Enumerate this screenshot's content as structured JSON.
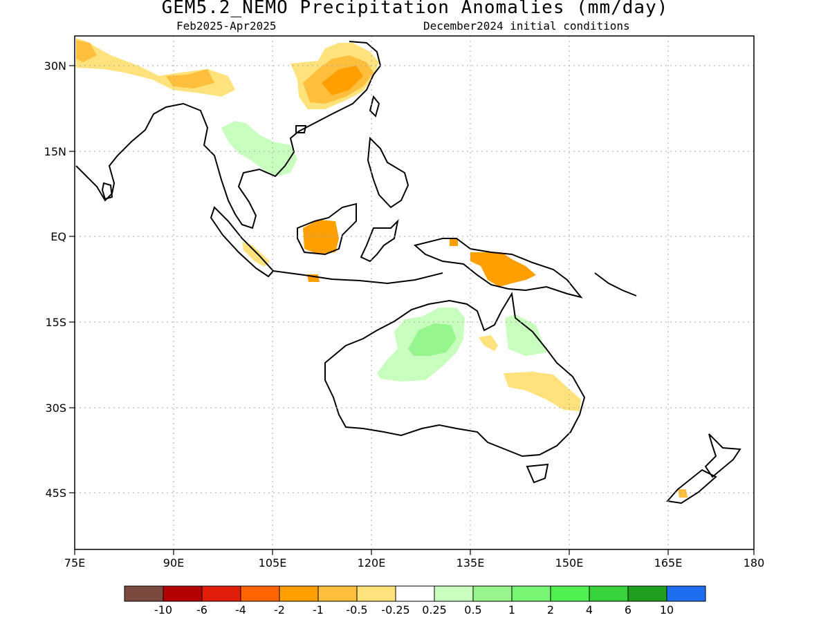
{
  "header": {
    "title": "GEM5.2_NEMO Precipitation Anomalies (mm/day)",
    "period": "Feb2025-Apr2025",
    "init": "December2024 initial conditions"
  },
  "map": {
    "lon_range": [
      75,
      180
    ],
    "lat_range": [
      -55,
      35
    ],
    "lon_ticks": [
      "75E",
      "90E",
      "105E",
      "120E",
      "135E",
      "150E",
      "165E",
      "180"
    ],
    "lat_ticks": [
      "30N",
      "15N",
      "EQ",
      "15S",
      "30S",
      "45S"
    ]
  },
  "legend": {
    "colors": [
      "#7b4a3e",
      "#b40000",
      "#e01e0a",
      "#ff6400",
      "#ffa000",
      "#ffbe3c",
      "#ffe27c",
      "#ffffff",
      "#c8ffbe",
      "#96f58c",
      "#78f573",
      "#50f050",
      "#37d23c",
      "#1ea01e",
      "#1e6ef0"
    ],
    "labels": [
      "-10",
      "-6",
      "-4",
      "-2",
      "-1",
      "-0.5",
      "-0.25",
      "0.25",
      "0.5",
      "1",
      "2",
      "4",
      "6",
      "10"
    ]
  },
  "anomaly_colors": {
    "dry_light": "#ffe27c",
    "dry_mid": "#ffbe3c",
    "dry_strong": "#ffa000",
    "wet_light": "#c8ffbe",
    "wet_mid": "#96f58c"
  }
}
